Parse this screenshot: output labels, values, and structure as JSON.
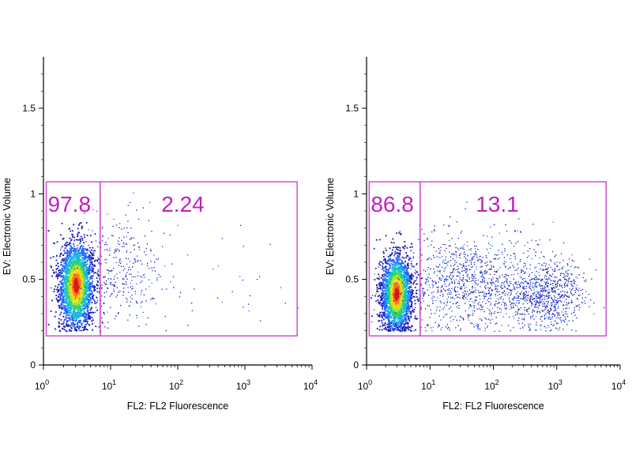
{
  "chart_data": [
    {
      "type": "scatter",
      "x_scale": "log",
      "xlabel": "FL2: FL2 Fluorescence",
      "ylabel": "EV: Electronic Volume",
      "xlim": [
        1,
        10000
      ],
      "ylim": [
        0,
        1.8
      ],
      "x_ticks": [
        {
          "value": 1,
          "base": "10",
          "exp": "0"
        },
        {
          "value": 10,
          "base": "10",
          "exp": "1"
        },
        {
          "value": 100,
          "base": "10",
          "exp": "2"
        },
        {
          "value": 1000,
          "base": "10",
          "exp": "3"
        },
        {
          "value": 10000,
          "base": "10",
          "exp": "4"
        }
      ],
      "y_ticks": [
        {
          "value": 0,
          "label": "0"
        },
        {
          "value": 0.5,
          "label": "0.5"
        },
        {
          "value": 1,
          "label": "1"
        },
        {
          "value": 1.5,
          "label": "1.5"
        }
      ],
      "gates": [
        {
          "x_range": [
            1.1,
            7
          ],
          "y_range": [
            0.17,
            1.07
          ],
          "label": "97.8",
          "label_pos": "top-left"
        },
        {
          "x_range": [
            7,
            6000
          ],
          "y_range": [
            0.17,
            1.07
          ],
          "label": "2.24",
          "label_pos": "top-center"
        }
      ],
      "populations": [
        {
          "x_center": 3.0,
          "x_spread_log": 0.13,
          "y_center": 0.47,
          "y_spread": 0.12,
          "y_max": 0.84,
          "count": 2600
        },
        {
          "x_center": 12,
          "x_spread_log": 0.35,
          "y_center": 0.55,
          "y_spread": 0.16,
          "count": 350
        },
        {
          "x_center": 300,
          "x_spread_log": 0.8,
          "y_center": 0.5,
          "y_spread": 0.15,
          "count": 45
        }
      ],
      "density_colors": [
        "#1414b4",
        "#1e64ff",
        "#14b4e6",
        "#28d278",
        "#aae628",
        "#ffd214",
        "#ff7814",
        "#d21e14"
      ],
      "gate_color": "#d040d0",
      "gate_label_color": "#c020c0"
    },
    {
      "type": "scatter",
      "x_scale": "log",
      "xlabel": "FL2: FL2 Fluorescence",
      "ylabel": "EV: Electronic Volume",
      "xlim": [
        1,
        10000
      ],
      "ylim": [
        0,
        1.8
      ],
      "x_ticks": [
        {
          "value": 1,
          "base": "10",
          "exp": "0"
        },
        {
          "value": 10,
          "base": "10",
          "exp": "1"
        },
        {
          "value": 100,
          "base": "10",
          "exp": "2"
        },
        {
          "value": 1000,
          "base": "10",
          "exp": "3"
        },
        {
          "value": 10000,
          "base": "10",
          "exp": "4"
        }
      ],
      "y_ticks": [
        {
          "value": 0,
          "label": "0"
        },
        {
          "value": 0.5,
          "label": "0.5"
        },
        {
          "value": 1,
          "label": "1"
        },
        {
          "value": 1.5,
          "label": "1.5"
        }
      ],
      "gates": [
        {
          "x_range": [
            1.1,
            7
          ],
          "y_range": [
            0.17,
            1.07
          ],
          "label": "86.8",
          "label_pos": "top-left"
        },
        {
          "x_range": [
            7,
            6000
          ],
          "y_range": [
            0.17,
            1.07
          ],
          "label": "13.1",
          "label_pos": "top-center"
        }
      ],
      "populations": [
        {
          "x_center": 2.9,
          "x_spread_log": 0.12,
          "y_center": 0.42,
          "y_spread": 0.11,
          "y_max": 0.84,
          "count": 2400
        },
        {
          "x_center": 40,
          "x_spread_log": 0.55,
          "y_center": 0.48,
          "y_spread": 0.14,
          "count": 1100
        },
        {
          "x_center": 700,
          "x_spread_log": 0.3,
          "y_center": 0.42,
          "y_spread": 0.1,
          "count": 750
        }
      ],
      "density_colors": [
        "#1414b4",
        "#1e64ff",
        "#14b4e6",
        "#28d278",
        "#aae628",
        "#ffd214",
        "#ff7814",
        "#d21e14"
      ],
      "gate_color": "#d040d0",
      "gate_label_color": "#c020c0"
    }
  ]
}
